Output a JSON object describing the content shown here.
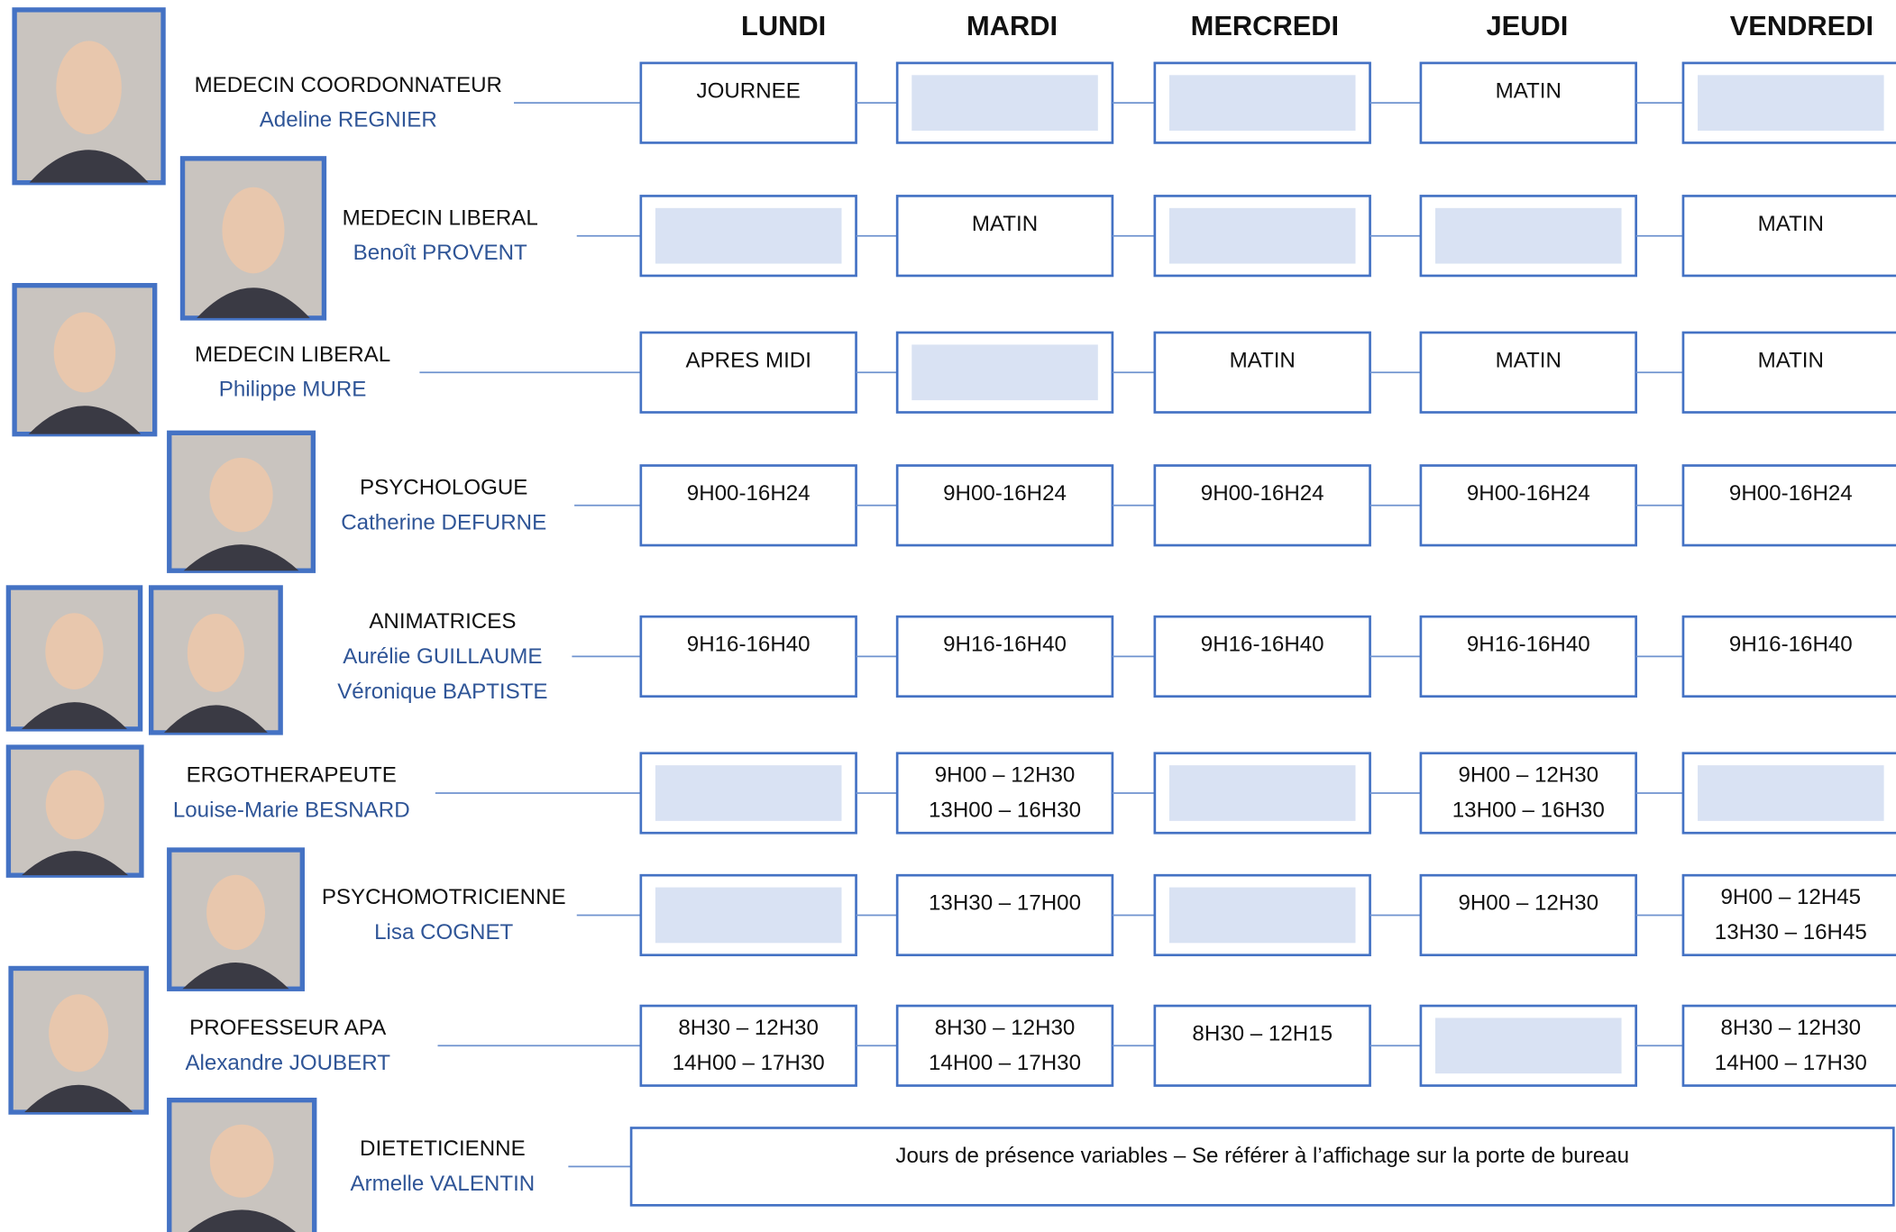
{
  "days": [
    "LUNDI",
    "MARDI",
    "MERCREDI",
    "JEUDI",
    "VENDREDI"
  ],
  "rows": [
    {
      "role": "MEDECIN COORDONNATEUR",
      "names": [
        "Adeline REGNIER"
      ],
      "cells": [
        [
          "JOURNEE"
        ],
        null,
        null,
        [
          "MATIN"
        ],
        null
      ]
    },
    {
      "role": "MEDECIN LIBERAL",
      "names": [
        "Benoît PROVENT"
      ],
      "cells": [
        null,
        [
          "MATIN"
        ],
        null,
        null,
        [
          "MATIN"
        ]
      ]
    },
    {
      "role": "MEDECIN LIBERAL",
      "names": [
        "Philippe MURE"
      ],
      "cells": [
        [
          "APRES MIDI"
        ],
        null,
        [
          "MATIN"
        ],
        [
          "MATIN"
        ],
        [
          "MATIN"
        ]
      ]
    },
    {
      "role": "PSYCHOLOGUE",
      "names": [
        "Catherine DEFURNE"
      ],
      "cells": [
        [
          "9H00-16H24"
        ],
        [
          "9H00-16H24"
        ],
        [
          "9H00-16H24"
        ],
        [
          "9H00-16H24"
        ],
        [
          "9H00-16H24"
        ]
      ]
    },
    {
      "role": "ANIMATRICES",
      "names": [
        "Aurélie GUILLAUME",
        "Véronique BAPTISTE"
      ],
      "cells": [
        [
          "9H16-16H40"
        ],
        [
          "9H16-16H40"
        ],
        [
          "9H16-16H40"
        ],
        [
          "9H16-16H40"
        ],
        [
          "9H16-16H40"
        ]
      ]
    },
    {
      "role": "ERGOTHERAPEUTE",
      "names": [
        "Louise-Marie BESNARD"
      ],
      "cells": [
        null,
        [
          "9H00 – 12H30",
          "13H00 – 16H30"
        ],
        null,
        [
          "9H00 – 12H30",
          "13H00 – 16H30"
        ],
        null
      ]
    },
    {
      "role": "PSYCHOMOTRICIENNE",
      "names": [
        "Lisa COGNET"
      ],
      "cells": [
        null,
        [
          "13H30 – 17H00"
        ],
        null,
        [
          "9H00 – 12H30"
        ],
        [
          "9H00 – 12H45",
          "13H30 – 16H45"
        ]
      ]
    },
    {
      "role": "PROFESSEUR APA",
      "names": [
        "Alexandre JOUBERT"
      ],
      "cells": [
        [
          "8H30 – 12H30",
          "14H00 – 17H30"
        ],
        [
          "8H30 – 12H30",
          "14H00 – 17H30"
        ],
        [
          "8H30 – 12H15"
        ],
        null,
        [
          "8H30 – 12H30",
          "14H00 – 17H30"
        ]
      ]
    },
    {
      "role": "DIETETICIENNE",
      "names": [
        "Armelle VALENTIN"
      ],
      "note": "Jours de présence variables – Se référer à l’affichage sur la porte de bureau"
    }
  ]
}
